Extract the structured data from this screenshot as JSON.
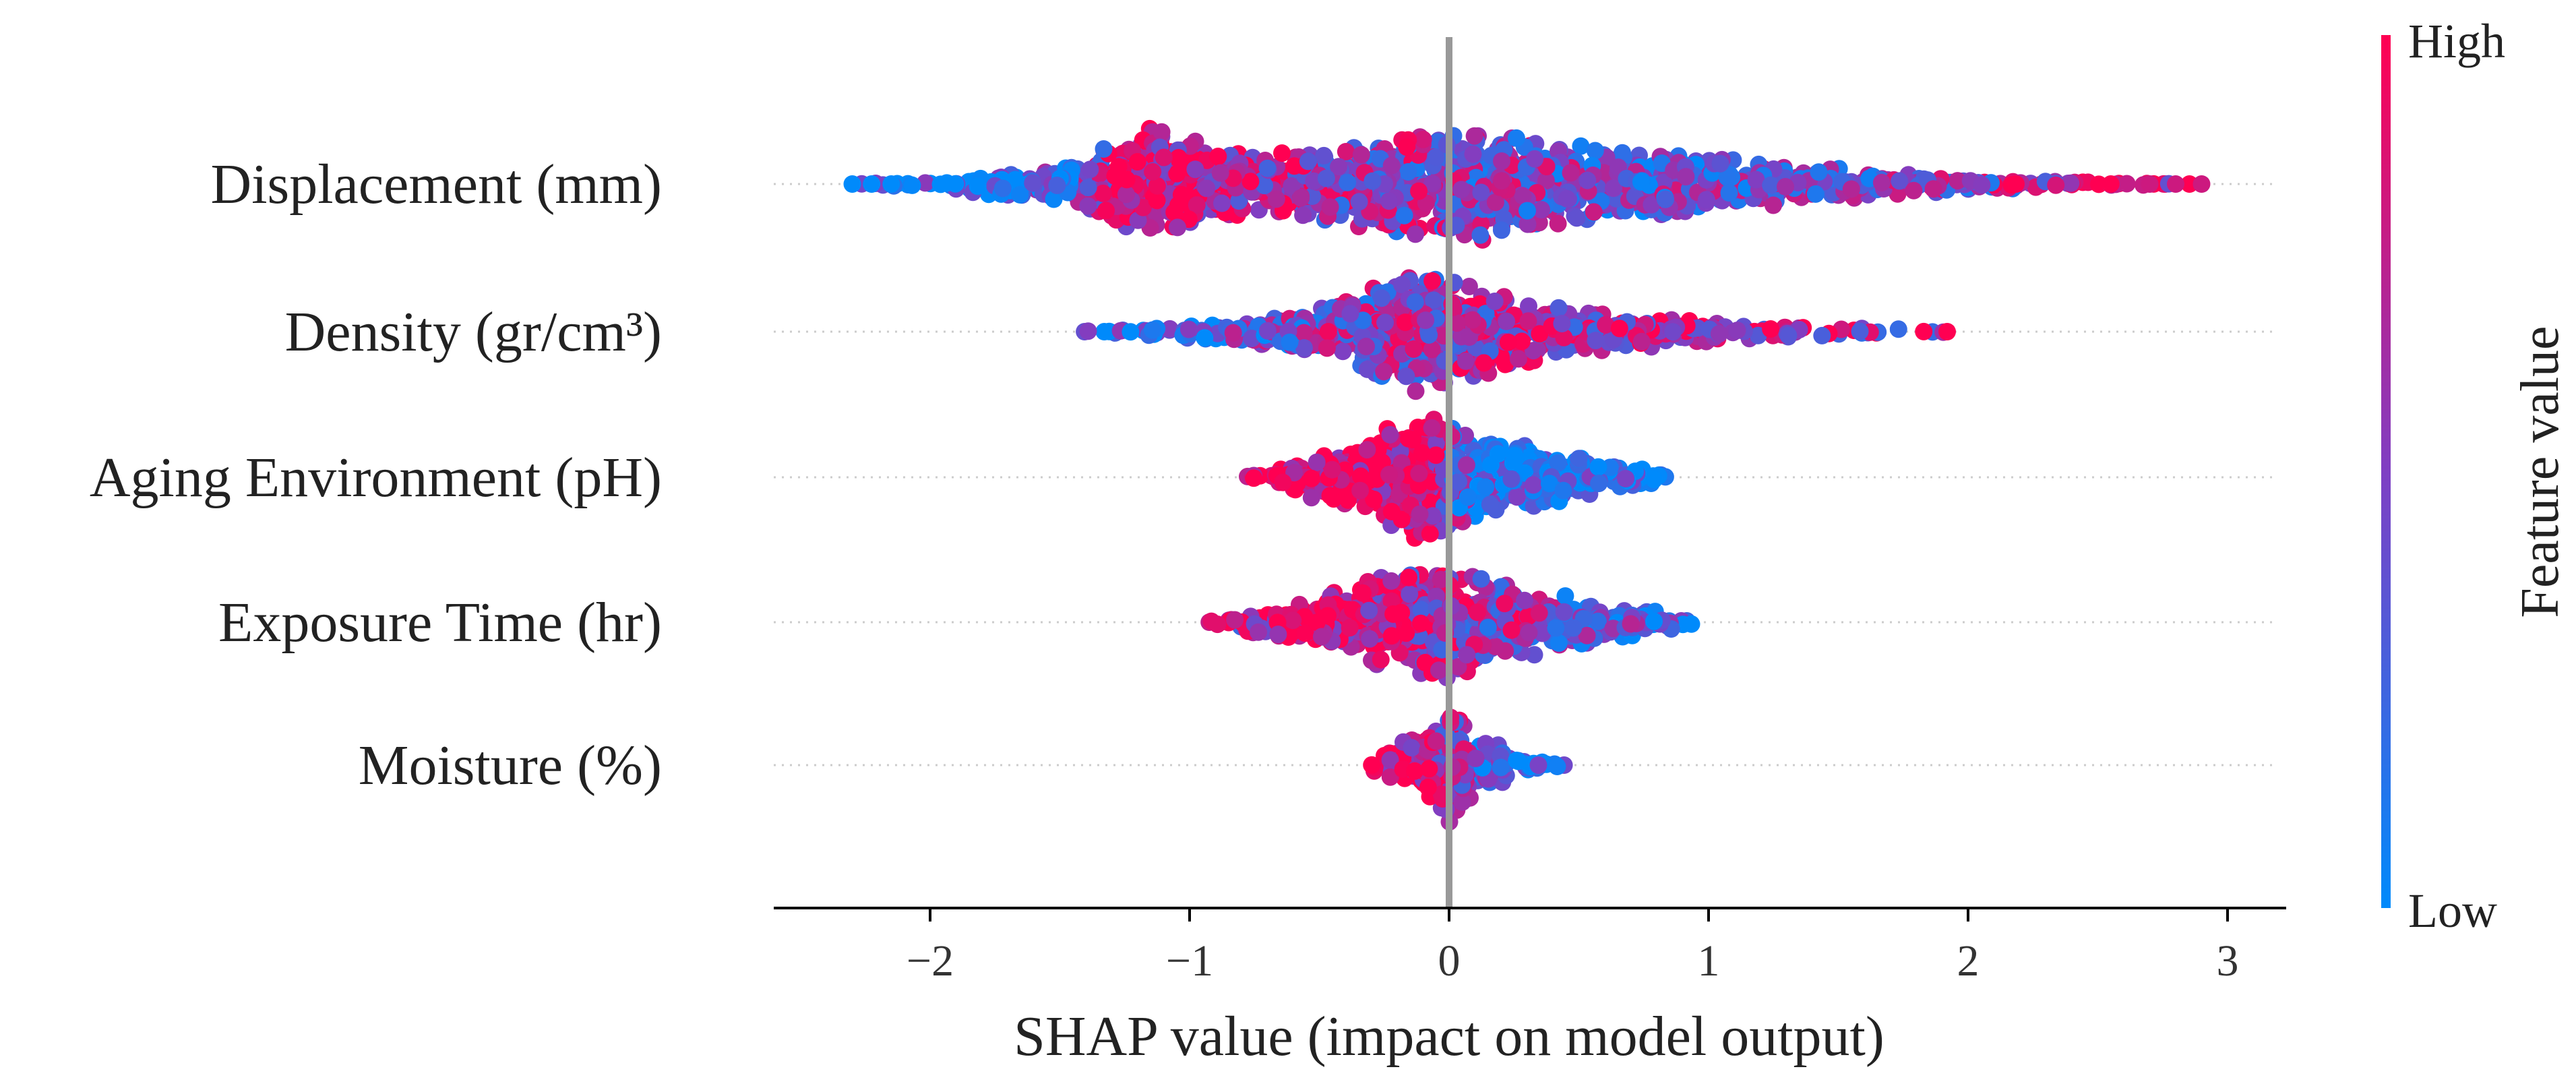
{
  "chart_data": {
    "type": "scatter",
    "subtype": "shap-beeswarm",
    "xlabel": "SHAP value (impact on model output)",
    "xlim": [
      -2.6,
      3.2
    ],
    "x_ticks": [
      -2,
      -1,
      0,
      1,
      2,
      3
    ],
    "x_tick_labels": [
      "−2",
      "−1",
      "0",
      "1",
      "2",
      "3"
    ],
    "features": [
      {
        "name": "Displacement (mm)",
        "range": [
          -2.3,
          2.9
        ],
        "profile": [
          [
            -2.3,
            0.0
          ],
          [
            -2.0,
            0.08
          ],
          [
            -1.7,
            0.22
          ],
          [
            -1.4,
            0.42
          ],
          [
            -1.15,
            0.95
          ],
          [
            -0.9,
            0.62
          ],
          [
            -0.6,
            0.52
          ],
          [
            -0.3,
            0.72
          ],
          [
            0.0,
            1.0
          ],
          [
            0.3,
            0.8
          ],
          [
            0.6,
            0.62
          ],
          [
            0.9,
            0.5
          ],
          [
            1.2,
            0.38
          ],
          [
            1.5,
            0.26
          ],
          [
            1.8,
            0.18
          ],
          [
            2.1,
            0.11
          ],
          [
            2.4,
            0.06
          ],
          [
            2.55,
            0.03
          ],
          [
            2.9,
            0.0
          ]
        ],
        "count": 1500,
        "color_trend": [
          [
            -2.3,
            0.05
          ],
          [
            -1.6,
            0.2
          ],
          [
            -1.15,
            0.85
          ],
          [
            -0.7,
            0.7
          ],
          [
            -0.2,
            0.55
          ],
          [
            0.4,
            0.45
          ],
          [
            1.0,
            0.45
          ],
          [
            2.0,
            0.5
          ],
          [
            2.9,
            0.8
          ]
        ],
        "outliers": [
          {
            "x": -2.3,
            "v": 0.0
          },
          {
            "x": -2.15,
            "v": 0.0
          },
          {
            "x": 2.55,
            "v": 1.0
          },
          {
            "x": 2.7,
            "v": 0.8
          },
          {
            "x": 2.8,
            "v": 0.8
          },
          {
            "x": 2.9,
            "v": 0.8
          }
        ]
      },
      {
        "name": "Density (gr/cm³)",
        "range": [
          -1.45,
          1.95
        ],
        "profile": [
          [
            -1.45,
            0.0
          ],
          [
            -1.2,
            0.08
          ],
          [
            -0.9,
            0.15
          ],
          [
            -0.6,
            0.32
          ],
          [
            -0.35,
            0.6
          ],
          [
            -0.1,
            1.0
          ],
          [
            0.1,
            0.75
          ],
          [
            0.3,
            0.55
          ],
          [
            0.6,
            0.32
          ],
          [
            0.9,
            0.2
          ],
          [
            1.2,
            0.12
          ],
          [
            1.5,
            0.07
          ],
          [
            1.8,
            0.04
          ],
          [
            1.95,
            0.0
          ]
        ],
        "count": 800,
        "color_trend": [
          [
            -1.45,
            0.05
          ],
          [
            -1.0,
            0.25
          ],
          [
            -0.5,
            0.5
          ],
          [
            0.0,
            0.6
          ],
          [
            0.5,
            0.65
          ],
          [
            1.0,
            0.75
          ],
          [
            1.5,
            0.6
          ],
          [
            1.95,
            0.6
          ]
        ],
        "outliers": []
      },
      {
        "name": "Aging Environment (pH)",
        "range": [
          -0.8,
          0.85
        ],
        "profile": [
          [
            -0.8,
            0.0
          ],
          [
            -0.6,
            0.28
          ],
          [
            -0.35,
            0.55
          ],
          [
            -0.15,
            0.95
          ],
          [
            -0.05,
            1.0
          ],
          [
            0.05,
            0.8
          ],
          [
            0.2,
            0.55
          ],
          [
            0.4,
            0.45
          ],
          [
            0.6,
            0.28
          ],
          [
            0.8,
            0.1
          ],
          [
            0.85,
            0.0
          ]
        ],
        "count": 750,
        "color_trend": [
          [
            -0.8,
            1.0
          ],
          [
            -0.3,
            0.95
          ],
          [
            -0.05,
            0.85
          ],
          [
            0.05,
            0.3
          ],
          [
            0.3,
            0.1
          ],
          [
            0.85,
            0.02
          ]
        ],
        "outliers": []
      },
      {
        "name": "Exposure Time (hr)",
        "range": [
          -0.95,
          1.0
        ],
        "profile": [
          [
            -0.95,
            0.0
          ],
          [
            -0.8,
            0.15
          ],
          [
            -0.6,
            0.32
          ],
          [
            -0.35,
            0.6
          ],
          [
            -0.15,
            0.85
          ],
          [
            0.0,
            1.0
          ],
          [
            0.15,
            0.8
          ],
          [
            0.35,
            0.5
          ],
          [
            0.6,
            0.35
          ],
          [
            0.8,
            0.2
          ],
          [
            1.0,
            0.0
          ]
        ],
        "count": 650,
        "color_trend": [
          [
            -0.95,
            0.4
          ],
          [
            -0.6,
            0.95
          ],
          [
            -0.3,
            0.8
          ],
          [
            0.0,
            0.6
          ],
          [
            0.3,
            0.55
          ],
          [
            0.6,
            0.35
          ],
          [
            1.0,
            0.05
          ]
        ],
        "outliers": []
      },
      {
        "name": "Moisture (%)",
        "range": [
          -0.32,
          0.45
        ],
        "profile": [
          [
            -0.32,
            0.0
          ],
          [
            -0.25,
            0.25
          ],
          [
            -0.1,
            0.5
          ],
          [
            0.0,
            1.0
          ],
          [
            0.1,
            0.5
          ],
          [
            0.2,
            0.3
          ],
          [
            0.3,
            0.12
          ],
          [
            0.45,
            0.0
          ]
        ],
        "count": 260,
        "color_trend": [
          [
            -0.32,
            0.95
          ],
          [
            -0.1,
            0.9
          ],
          [
            0.0,
            0.6
          ],
          [
            0.1,
            0.35
          ],
          [
            0.3,
            0.05
          ],
          [
            0.45,
            0.0
          ]
        ],
        "outliers": []
      }
    ],
    "colorbar": {
      "label": "Feature value",
      "high_label": "High",
      "low_label": "Low",
      "low_color": "#008afb",
      "high_color": "#ff0052"
    },
    "zero_line_color": "#999999"
  }
}
